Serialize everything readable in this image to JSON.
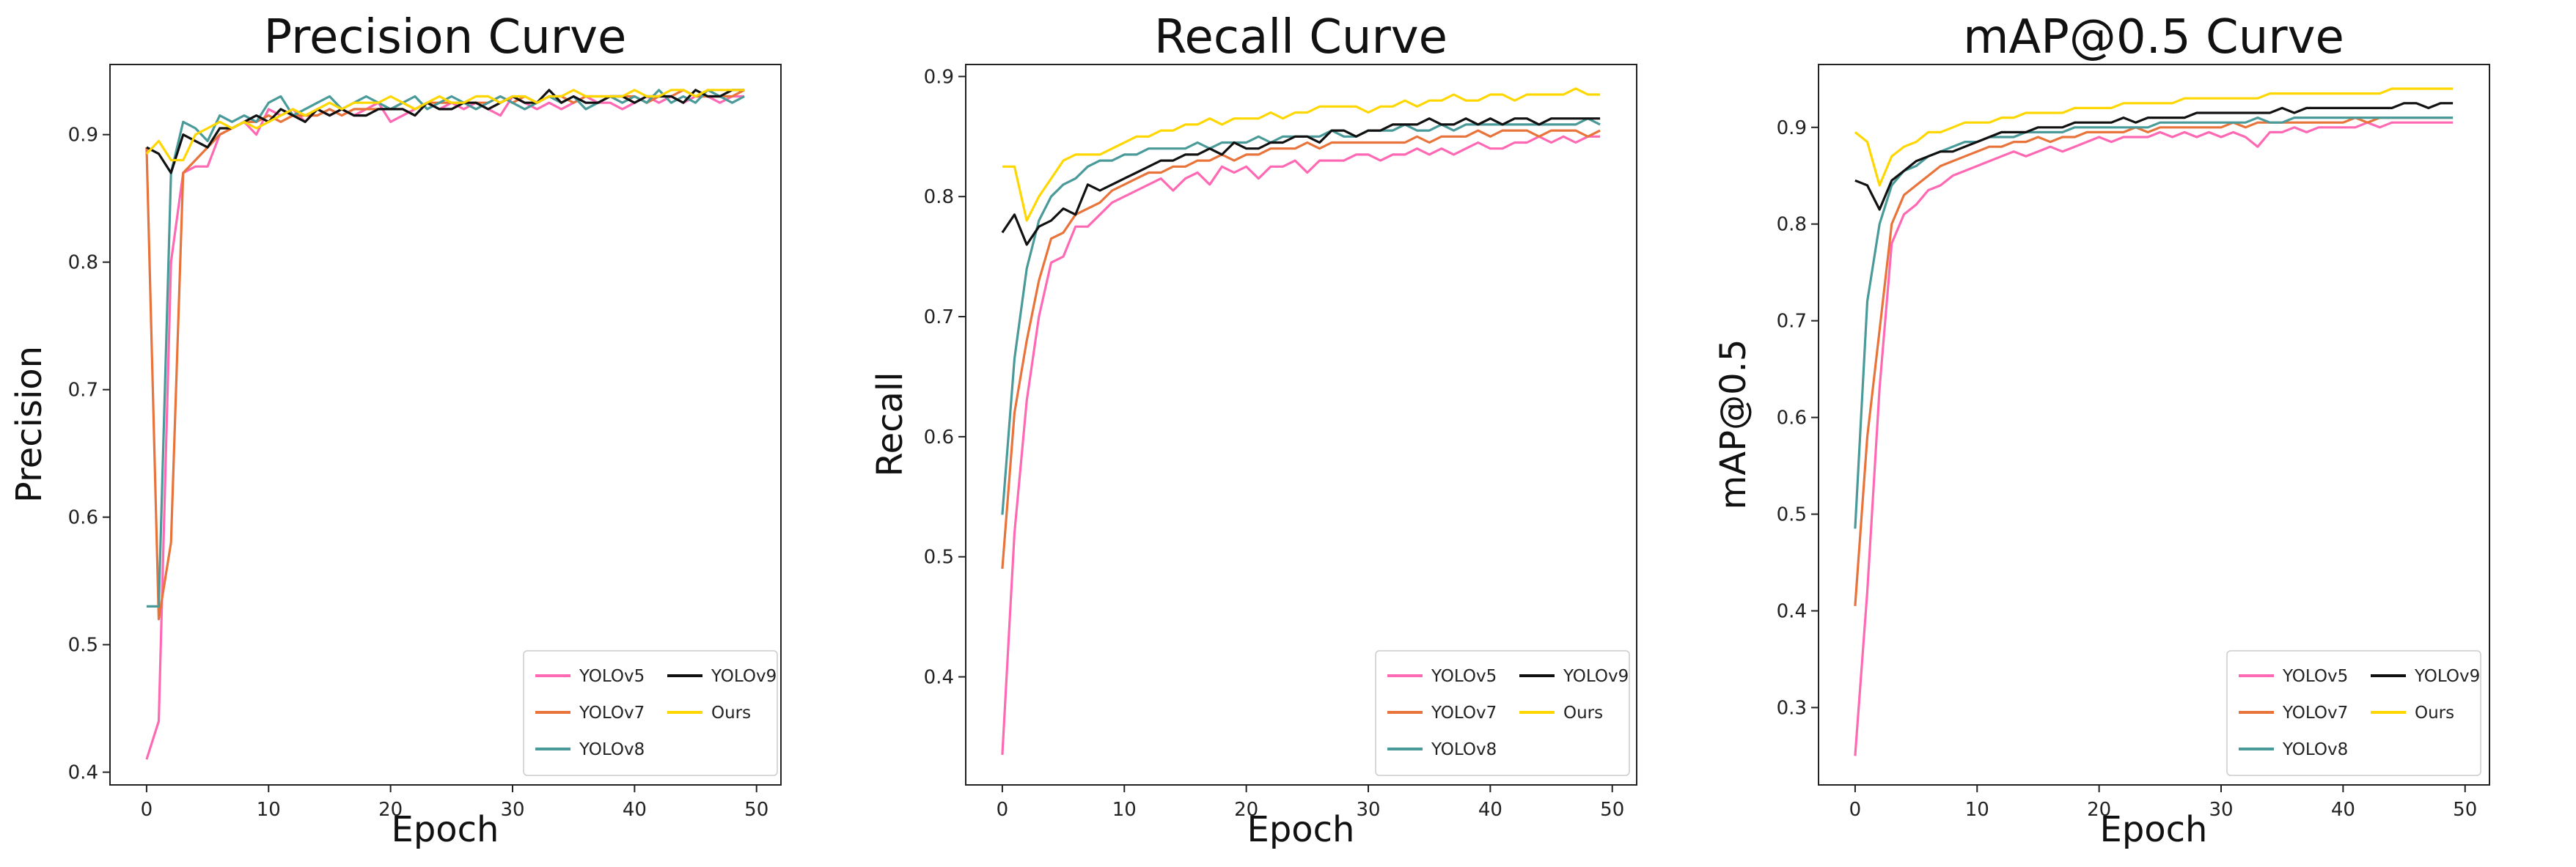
{
  "colors": {
    "YOLOv5": "#ff69b4",
    "YOLOv7": "#e8743b",
    "YOLOv8": "#4a9a9a",
    "YOLOv9": "#111111",
    "Ours": "#ffd700"
  },
  "chart_data": [
    {
      "type": "line",
      "title": "Precision Curve",
      "xlabel": "Epoch",
      "ylabel": "Precision",
      "xlim": [
        -3,
        52
      ],
      "ylim": [
        0.39,
        0.955
      ],
      "xticks": [
        "0",
        "10",
        "20",
        "30",
        "40",
        "50"
      ],
      "yticks": [
        "0.4",
        "0.5",
        "0.6",
        "0.7",
        "0.8",
        "0.9"
      ],
      "legend": "lower-right",
      "x": [
        0,
        1,
        2,
        3,
        4,
        5,
        6,
        7,
        8,
        9,
        10,
        11,
        12,
        13,
        14,
        15,
        16,
        17,
        18,
        19,
        20,
        21,
        22,
        23,
        24,
        25,
        26,
        27,
        28,
        29,
        30,
        31,
        32,
        33,
        34,
        35,
        36,
        37,
        38,
        39,
        40,
        41,
        42,
        43,
        44,
        45,
        46,
        47,
        48,
        49
      ],
      "series": [
        {
          "name": "YOLOv5",
          "values": [
            0.41,
            0.44,
            0.8,
            0.87,
            0.875,
            0.875,
            0.9,
            0.905,
            0.91,
            0.9,
            0.92,
            0.915,
            0.92,
            0.91,
            0.92,
            0.915,
            0.92,
            0.915,
            0.92,
            0.925,
            0.91,
            0.915,
            0.92,
            0.925,
            0.92,
            0.925,
            0.92,
            0.925,
            0.92,
            0.915,
            0.93,
            0.925,
            0.92,
            0.925,
            0.92,
            0.925,
            0.93,
            0.925,
            0.925,
            0.92,
            0.925,
            0.93,
            0.925,
            0.93,
            0.925,
            0.93,
            0.93,
            0.925,
            0.93,
            0.93
          ]
        },
        {
          "name": "YOLOv7",
          "values": [
            0.89,
            0.52,
            0.58,
            0.87,
            0.88,
            0.89,
            0.9,
            0.905,
            0.91,
            0.91,
            0.915,
            0.91,
            0.915,
            0.915,
            0.915,
            0.92,
            0.915,
            0.92,
            0.92,
            0.92,
            0.92,
            0.925,
            0.92,
            0.925,
            0.925,
            0.925,
            0.925,
            0.925,
            0.925,
            0.93,
            0.925,
            0.93,
            0.925,
            0.93,
            0.93,
            0.925,
            0.93,
            0.93,
            0.93,
            0.93,
            0.93,
            0.925,
            0.93,
            0.93,
            0.935,
            0.93,
            0.93,
            0.93,
            0.93,
            0.935
          ]
        },
        {
          "name": "YOLOv8",
          "values": [
            0.53,
            0.53,
            0.87,
            0.91,
            0.905,
            0.895,
            0.915,
            0.91,
            0.915,
            0.91,
            0.925,
            0.93,
            0.915,
            0.92,
            0.925,
            0.93,
            0.92,
            0.925,
            0.93,
            0.925,
            0.92,
            0.925,
            0.93,
            0.92,
            0.925,
            0.93,
            0.925,
            0.92,
            0.925,
            0.93,
            0.925,
            0.92,
            0.925,
            0.93,
            0.925,
            0.93,
            0.92,
            0.925,
            0.93,
            0.925,
            0.93,
            0.925,
            0.935,
            0.925,
            0.93,
            0.925,
            0.935,
            0.93,
            0.925,
            0.93
          ]
        },
        {
          "name": "YOLOv9",
          "values": [
            0.89,
            0.885,
            0.87,
            0.9,
            0.895,
            0.89,
            0.905,
            0.905,
            0.91,
            0.915,
            0.91,
            0.92,
            0.915,
            0.91,
            0.92,
            0.915,
            0.92,
            0.915,
            0.915,
            0.92,
            0.92,
            0.92,
            0.915,
            0.925,
            0.92,
            0.92,
            0.925,
            0.925,
            0.92,
            0.925,
            0.93,
            0.925,
            0.925,
            0.935,
            0.925,
            0.93,
            0.925,
            0.925,
            0.93,
            0.93,
            0.925,
            0.93,
            0.93,
            0.93,
            0.925,
            0.935,
            0.93,
            0.93,
            0.935,
            0.935
          ]
        },
        {
          "name": "Ours",
          "values": [
            0.885,
            0.895,
            0.88,
            0.88,
            0.9,
            0.905,
            0.91,
            0.905,
            0.91,
            0.905,
            0.91,
            0.915,
            0.92,
            0.915,
            0.92,
            0.925,
            0.92,
            0.925,
            0.925,
            0.925,
            0.93,
            0.925,
            0.92,
            0.925,
            0.93,
            0.925,
            0.925,
            0.93,
            0.93,
            0.925,
            0.93,
            0.93,
            0.925,
            0.93,
            0.93,
            0.935,
            0.93,
            0.93,
            0.93,
            0.93,
            0.935,
            0.93,
            0.93,
            0.935,
            0.935,
            0.93,
            0.935,
            0.935,
            0.935,
            0.935
          ]
        }
      ]
    },
    {
      "type": "line",
      "title": "Recall Curve",
      "xlabel": "Epoch",
      "ylabel": "Recall",
      "xlim": [
        -3,
        52
      ],
      "ylim": [
        0.31,
        0.91
      ],
      "xticks": [
        "0",
        "10",
        "20",
        "30",
        "40",
        "50"
      ],
      "yticks": [
        "0.4",
        "0.5",
        "0.6",
        "0.7",
        "0.8",
        "0.9"
      ],
      "legend": "lower-right",
      "x": [
        0,
        1,
        2,
        3,
        4,
        5,
        6,
        7,
        8,
        9,
        10,
        11,
        12,
        13,
        14,
        15,
        16,
        17,
        18,
        19,
        20,
        21,
        22,
        23,
        24,
        25,
        26,
        27,
        28,
        29,
        30,
        31,
        32,
        33,
        34,
        35,
        36,
        37,
        38,
        39,
        40,
        41,
        42,
        43,
        44,
        45,
        46,
        47,
        48,
        49
      ],
      "series": [
        {
          "name": "YOLOv5",
          "values": [
            0.335,
            0.52,
            0.63,
            0.7,
            0.745,
            0.75,
            0.775,
            0.775,
            0.785,
            0.795,
            0.8,
            0.805,
            0.81,
            0.815,
            0.805,
            0.815,
            0.82,
            0.81,
            0.825,
            0.82,
            0.825,
            0.815,
            0.825,
            0.825,
            0.83,
            0.82,
            0.83,
            0.83,
            0.83,
            0.835,
            0.835,
            0.83,
            0.835,
            0.835,
            0.84,
            0.835,
            0.84,
            0.835,
            0.84,
            0.845,
            0.84,
            0.84,
            0.845,
            0.845,
            0.85,
            0.845,
            0.85,
            0.845,
            0.85,
            0.85
          ]
        },
        {
          "name": "YOLOv7",
          "values": [
            0.49,
            0.62,
            0.68,
            0.73,
            0.765,
            0.77,
            0.785,
            0.79,
            0.795,
            0.805,
            0.81,
            0.815,
            0.82,
            0.82,
            0.825,
            0.825,
            0.83,
            0.83,
            0.835,
            0.83,
            0.835,
            0.835,
            0.84,
            0.84,
            0.84,
            0.845,
            0.84,
            0.845,
            0.845,
            0.845,
            0.845,
            0.845,
            0.845,
            0.845,
            0.85,
            0.845,
            0.85,
            0.85,
            0.85,
            0.855,
            0.85,
            0.855,
            0.855,
            0.855,
            0.85,
            0.855,
            0.855,
            0.855,
            0.85,
            0.855
          ]
        },
        {
          "name": "YOLOv8",
          "values": [
            0.535,
            0.665,
            0.74,
            0.78,
            0.8,
            0.81,
            0.815,
            0.825,
            0.83,
            0.83,
            0.835,
            0.835,
            0.84,
            0.84,
            0.84,
            0.84,
            0.845,
            0.84,
            0.845,
            0.845,
            0.845,
            0.85,
            0.845,
            0.85,
            0.85,
            0.85,
            0.85,
            0.855,
            0.85,
            0.85,
            0.855,
            0.855,
            0.855,
            0.86,
            0.855,
            0.855,
            0.86,
            0.855,
            0.86,
            0.86,
            0.86,
            0.86,
            0.86,
            0.86,
            0.86,
            0.86,
            0.86,
            0.86,
            0.865,
            0.86
          ]
        },
        {
          "name": "YOLOv9",
          "values": [
            0.77,
            0.785,
            0.76,
            0.775,
            0.78,
            0.79,
            0.785,
            0.81,
            0.805,
            0.81,
            0.815,
            0.82,
            0.825,
            0.83,
            0.83,
            0.835,
            0.835,
            0.84,
            0.835,
            0.845,
            0.84,
            0.84,
            0.845,
            0.845,
            0.85,
            0.85,
            0.845,
            0.855,
            0.855,
            0.85,
            0.855,
            0.855,
            0.86,
            0.86,
            0.86,
            0.865,
            0.86,
            0.86,
            0.865,
            0.86,
            0.865,
            0.86,
            0.865,
            0.865,
            0.86,
            0.865,
            0.865,
            0.865,
            0.865,
            0.865
          ]
        },
        {
          "name": "Ours",
          "values": [
            0.825,
            0.825,
            0.78,
            0.8,
            0.815,
            0.83,
            0.835,
            0.835,
            0.835,
            0.84,
            0.845,
            0.85,
            0.85,
            0.855,
            0.855,
            0.86,
            0.86,
            0.865,
            0.86,
            0.865,
            0.865,
            0.865,
            0.87,
            0.865,
            0.87,
            0.87,
            0.875,
            0.875,
            0.875,
            0.875,
            0.87,
            0.875,
            0.875,
            0.88,
            0.875,
            0.88,
            0.88,
            0.885,
            0.88,
            0.88,
            0.885,
            0.885,
            0.88,
            0.885,
            0.885,
            0.885,
            0.885,
            0.89,
            0.885,
            0.885
          ]
        }
      ]
    },
    {
      "type": "line",
      "title": "mAP@0.5 Curve",
      "xlabel": "Epoch",
      "ylabel": "mAP@0.5",
      "xlim": [
        -3,
        52
      ],
      "ylim": [
        0.22,
        0.965
      ],
      "xticks": [
        "0",
        "10",
        "20",
        "30",
        "40",
        "50"
      ],
      "yticks": [
        "0.3",
        "0.4",
        "0.5",
        "0.6",
        "0.7",
        "0.8",
        "0.9"
      ],
      "legend": "lower-right",
      "x": [
        0,
        1,
        2,
        3,
        4,
        5,
        6,
        7,
        8,
        9,
        10,
        11,
        12,
        13,
        14,
        15,
        16,
        17,
        18,
        19,
        20,
        21,
        22,
        23,
        24,
        25,
        26,
        27,
        28,
        29,
        30,
        31,
        32,
        33,
        34,
        35,
        36,
        37,
        38,
        39,
        40,
        41,
        42,
        43,
        44,
        45,
        46,
        47,
        48,
        49
      ],
      "series": [
        {
          "name": "YOLOv5",
          "values": [
            0.25,
            0.42,
            0.63,
            0.78,
            0.81,
            0.82,
            0.835,
            0.84,
            0.85,
            0.855,
            0.86,
            0.865,
            0.87,
            0.875,
            0.87,
            0.875,
            0.88,
            0.875,
            0.88,
            0.885,
            0.89,
            0.885,
            0.89,
            0.89,
            0.89,
            0.895,
            0.89,
            0.895,
            0.89,
            0.895,
            0.89,
            0.895,
            0.89,
            0.88,
            0.895,
            0.895,
            0.9,
            0.895,
            0.9,
            0.9,
            0.9,
            0.9,
            0.905,
            0.9,
            0.905,
            0.905,
            0.905,
            0.905,
            0.905,
            0.905
          ]
        },
        {
          "name": "YOLOv7",
          "values": [
            0.405,
            0.58,
            0.69,
            0.8,
            0.83,
            0.84,
            0.85,
            0.86,
            0.865,
            0.87,
            0.875,
            0.88,
            0.88,
            0.885,
            0.885,
            0.89,
            0.885,
            0.89,
            0.89,
            0.895,
            0.895,
            0.895,
            0.895,
            0.9,
            0.895,
            0.9,
            0.9,
            0.9,
            0.9,
            0.9,
            0.9,
            0.905,
            0.9,
            0.905,
            0.905,
            0.905,
            0.905,
            0.905,
            0.905,
            0.905,
            0.905,
            0.91,
            0.905,
            0.91,
            0.91,
            0.91,
            0.91,
            0.91,
            0.91,
            0.91
          ]
        },
        {
          "name": "YOLOv8",
          "values": [
            0.485,
            0.72,
            0.8,
            0.84,
            0.855,
            0.86,
            0.87,
            0.875,
            0.88,
            0.885,
            0.885,
            0.89,
            0.89,
            0.89,
            0.895,
            0.895,
            0.895,
            0.895,
            0.9,
            0.9,
            0.9,
            0.9,
            0.9,
            0.9,
            0.9,
            0.905,
            0.905,
            0.905,
            0.905,
            0.905,
            0.905,
            0.905,
            0.905,
            0.91,
            0.905,
            0.905,
            0.91,
            0.91,
            0.91,
            0.91,
            0.91,
            0.91,
            0.91,
            0.91,
            0.91,
            0.91,
            0.91,
            0.91,
            0.91,
            0.91
          ]
        },
        {
          "name": "YOLOv9",
          "values": [
            0.845,
            0.84,
            0.815,
            0.845,
            0.855,
            0.865,
            0.87,
            0.875,
            0.875,
            0.88,
            0.885,
            0.89,
            0.895,
            0.895,
            0.895,
            0.9,
            0.9,
            0.9,
            0.905,
            0.905,
            0.905,
            0.905,
            0.91,
            0.905,
            0.91,
            0.91,
            0.91,
            0.91,
            0.915,
            0.915,
            0.915,
            0.915,
            0.915,
            0.915,
            0.915,
            0.92,
            0.915,
            0.92,
            0.92,
            0.92,
            0.92,
            0.92,
            0.92,
            0.92,
            0.92,
            0.925,
            0.925,
            0.92,
            0.925,
            0.925
          ]
        },
        {
          "name": "Ours",
          "values": [
            0.895,
            0.885,
            0.84,
            0.87,
            0.88,
            0.885,
            0.895,
            0.895,
            0.9,
            0.905,
            0.905,
            0.905,
            0.91,
            0.91,
            0.915,
            0.915,
            0.915,
            0.915,
            0.92,
            0.92,
            0.92,
            0.92,
            0.925,
            0.925,
            0.925,
            0.925,
            0.925,
            0.93,
            0.93,
            0.93,
            0.93,
            0.93,
            0.93,
            0.93,
            0.935,
            0.935,
            0.935,
            0.935,
            0.935,
            0.935,
            0.935,
            0.935,
            0.935,
            0.935,
            0.94,
            0.94,
            0.94,
            0.94,
            0.94,
            0.94
          ]
        }
      ]
    }
  ]
}
